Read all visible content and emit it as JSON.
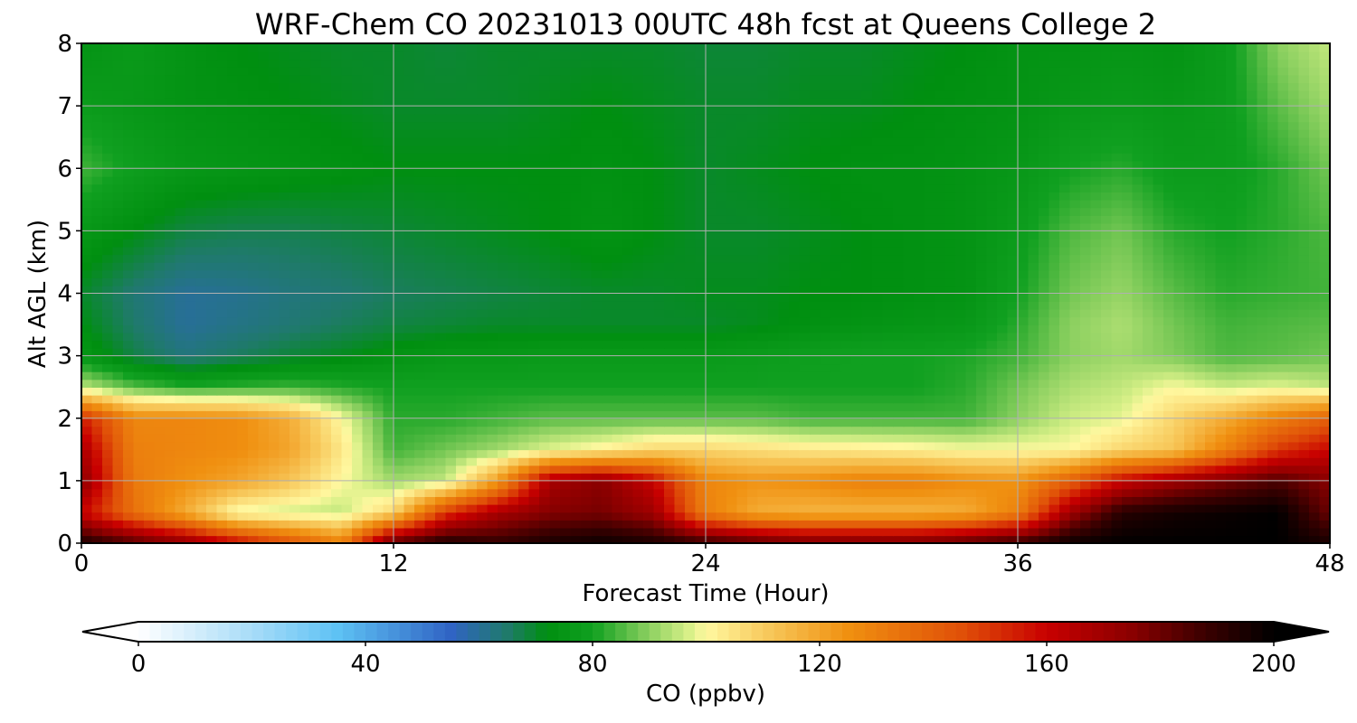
{
  "chart_data": {
    "type": "heatmap",
    "title": "WRF-Chem CO  20231013 00UTC 48h fcst at Queens College 2",
    "xlabel": "Forecast Time (Hour)",
    "ylabel": "Alt AGL (km)",
    "xlim": [
      0,
      48
    ],
    "ylim": [
      0,
      8
    ],
    "xticks": [
      0,
      12,
      24,
      36,
      48
    ],
    "yticks": [
      0,
      1,
      2,
      3,
      4,
      5,
      6,
      7,
      8
    ],
    "grid": true,
    "colorbar": {
      "label": "CO  (ppbv)",
      "vmin": 0,
      "vmax": 200,
      "ticks": [
        0,
        40,
        80,
        120,
        160,
        200
      ],
      "extend": "both",
      "colors": {
        "0": "#ffffff",
        "20": "#a8dcf8",
        "35": "#5ec2f4",
        "55": "#3064c4",
        "65": "#1f7a6a",
        "72": "#008f10",
        "80": "#10a020",
        "90": "#8cd060",
        "97": "#d8f088",
        "100": "#fff8a0",
        "110": "#f8cc60",
        "125": "#f09010",
        "145": "#e05008",
        "160": "#c80000",
        "175": "#8a0000",
        "188": "#3a0000",
        "200": "#000000"
      }
    },
    "x": [
      0,
      2,
      4,
      6,
      8,
      10,
      12,
      14,
      16,
      18,
      20,
      22,
      24,
      26,
      28,
      30,
      32,
      34,
      36,
      38,
      40,
      42,
      44,
      46,
      48
    ],
    "y": [
      0,
      0.5,
      1,
      1.5,
      2,
      2.5,
      3,
      3.5,
      4,
      5,
      6,
      7,
      8
    ],
    "z": [
      [
        195,
        185,
        175,
        160,
        145,
        130,
        185,
        195,
        190,
        195,
        198,
        195,
        190,
        185,
        180,
        180,
        180,
        185,
        190,
        198,
        200,
        200,
        200,
        200,
        195
      ],
      [
        160,
        135,
        118,
        98,
        96,
        95,
        108,
        150,
        168,
        176,
        178,
        170,
        130,
        118,
        116,
        116,
        116,
        118,
        130,
        170,
        192,
        196,
        198,
        200,
        180
      ],
      [
        175,
        132,
        125,
        120,
        112,
        100,
        92,
        95,
        122,
        168,
        175,
        160,
        128,
        124,
        126,
        130,
        130,
        126,
        124,
        140,
        160,
        170,
        178,
        185,
        175
      ],
      [
        168,
        130,
        128,
        126,
        120,
        104,
        84,
        88,
        92,
        98,
        102,
        108,
        108,
        106,
        104,
        103,
        102,
        100,
        100,
        100,
        108,
        112,
        130,
        150,
        160
      ],
      [
        155,
        128,
        128,
        126,
        118,
        100,
        82,
        82,
        84,
        86,
        86,
        86,
        86,
        86,
        84,
        84,
        84,
        84,
        90,
        96,
        98,
        108,
        118,
        130,
        140
      ],
      [
        95,
        86,
        82,
        83,
        84,
        82,
        80,
        80,
        80,
        80,
        80,
        80,
        80,
        80,
        80,
        80,
        80,
        82,
        88,
        93,
        95,
        100,
        96,
        98,
        95
      ],
      [
        76,
        68,
        63,
        66,
        69,
        71,
        74,
        76,
        76,
        77,
        77,
        77,
        77,
        78,
        79,
        80,
        80,
        81,
        84,
        90,
        92,
        89,
        85,
        86,
        88
      ],
      [
        72,
        65,
        60,
        62,
        64,
        66,
        68,
        69,
        70,
        70,
        70,
        70,
        70,
        71,
        73,
        74,
        75,
        76,
        82,
        90,
        93,
        88,
        84,
        85,
        86
      ],
      [
        70,
        64,
        60,
        61,
        63,
        64,
        66,
        67,
        68,
        69,
        70,
        70,
        71,
        71,
        72,
        72,
        73,
        74,
        80,
        88,
        91,
        86,
        82,
        83,
        84
      ],
      [
        76,
        72,
        68,
        67,
        67,
        68,
        69,
        70,
        71,
        72,
        74,
        72,
        70,
        70,
        71,
        72,
        73,
        74,
        78,
        85,
        88,
        82,
        80,
        82,
        85
      ],
      [
        84,
        79,
        76,
        75,
        74,
        73,
        72,
        72,
        72,
        72,
        73,
        72,
        70,
        71,
        72,
        73,
        73,
        74,
        76,
        80,
        82,
        78,
        78,
        82,
        88
      ],
      [
        78,
        76,
        74,
        73,
        72,
        71,
        70,
        70,
        70,
        71,
        72,
        71,
        70,
        70,
        71,
        71,
        72,
        73,
        74,
        76,
        77,
        76,
        78,
        86,
        92
      ],
      [
        74,
        77,
        74,
        72,
        71,
        70,
        70,
        69,
        70,
        70,
        70,
        70,
        69,
        69,
        70,
        70,
        71,
        72,
        74,
        74,
        75,
        74,
        78,
        90,
        95
      ]
    ]
  }
}
